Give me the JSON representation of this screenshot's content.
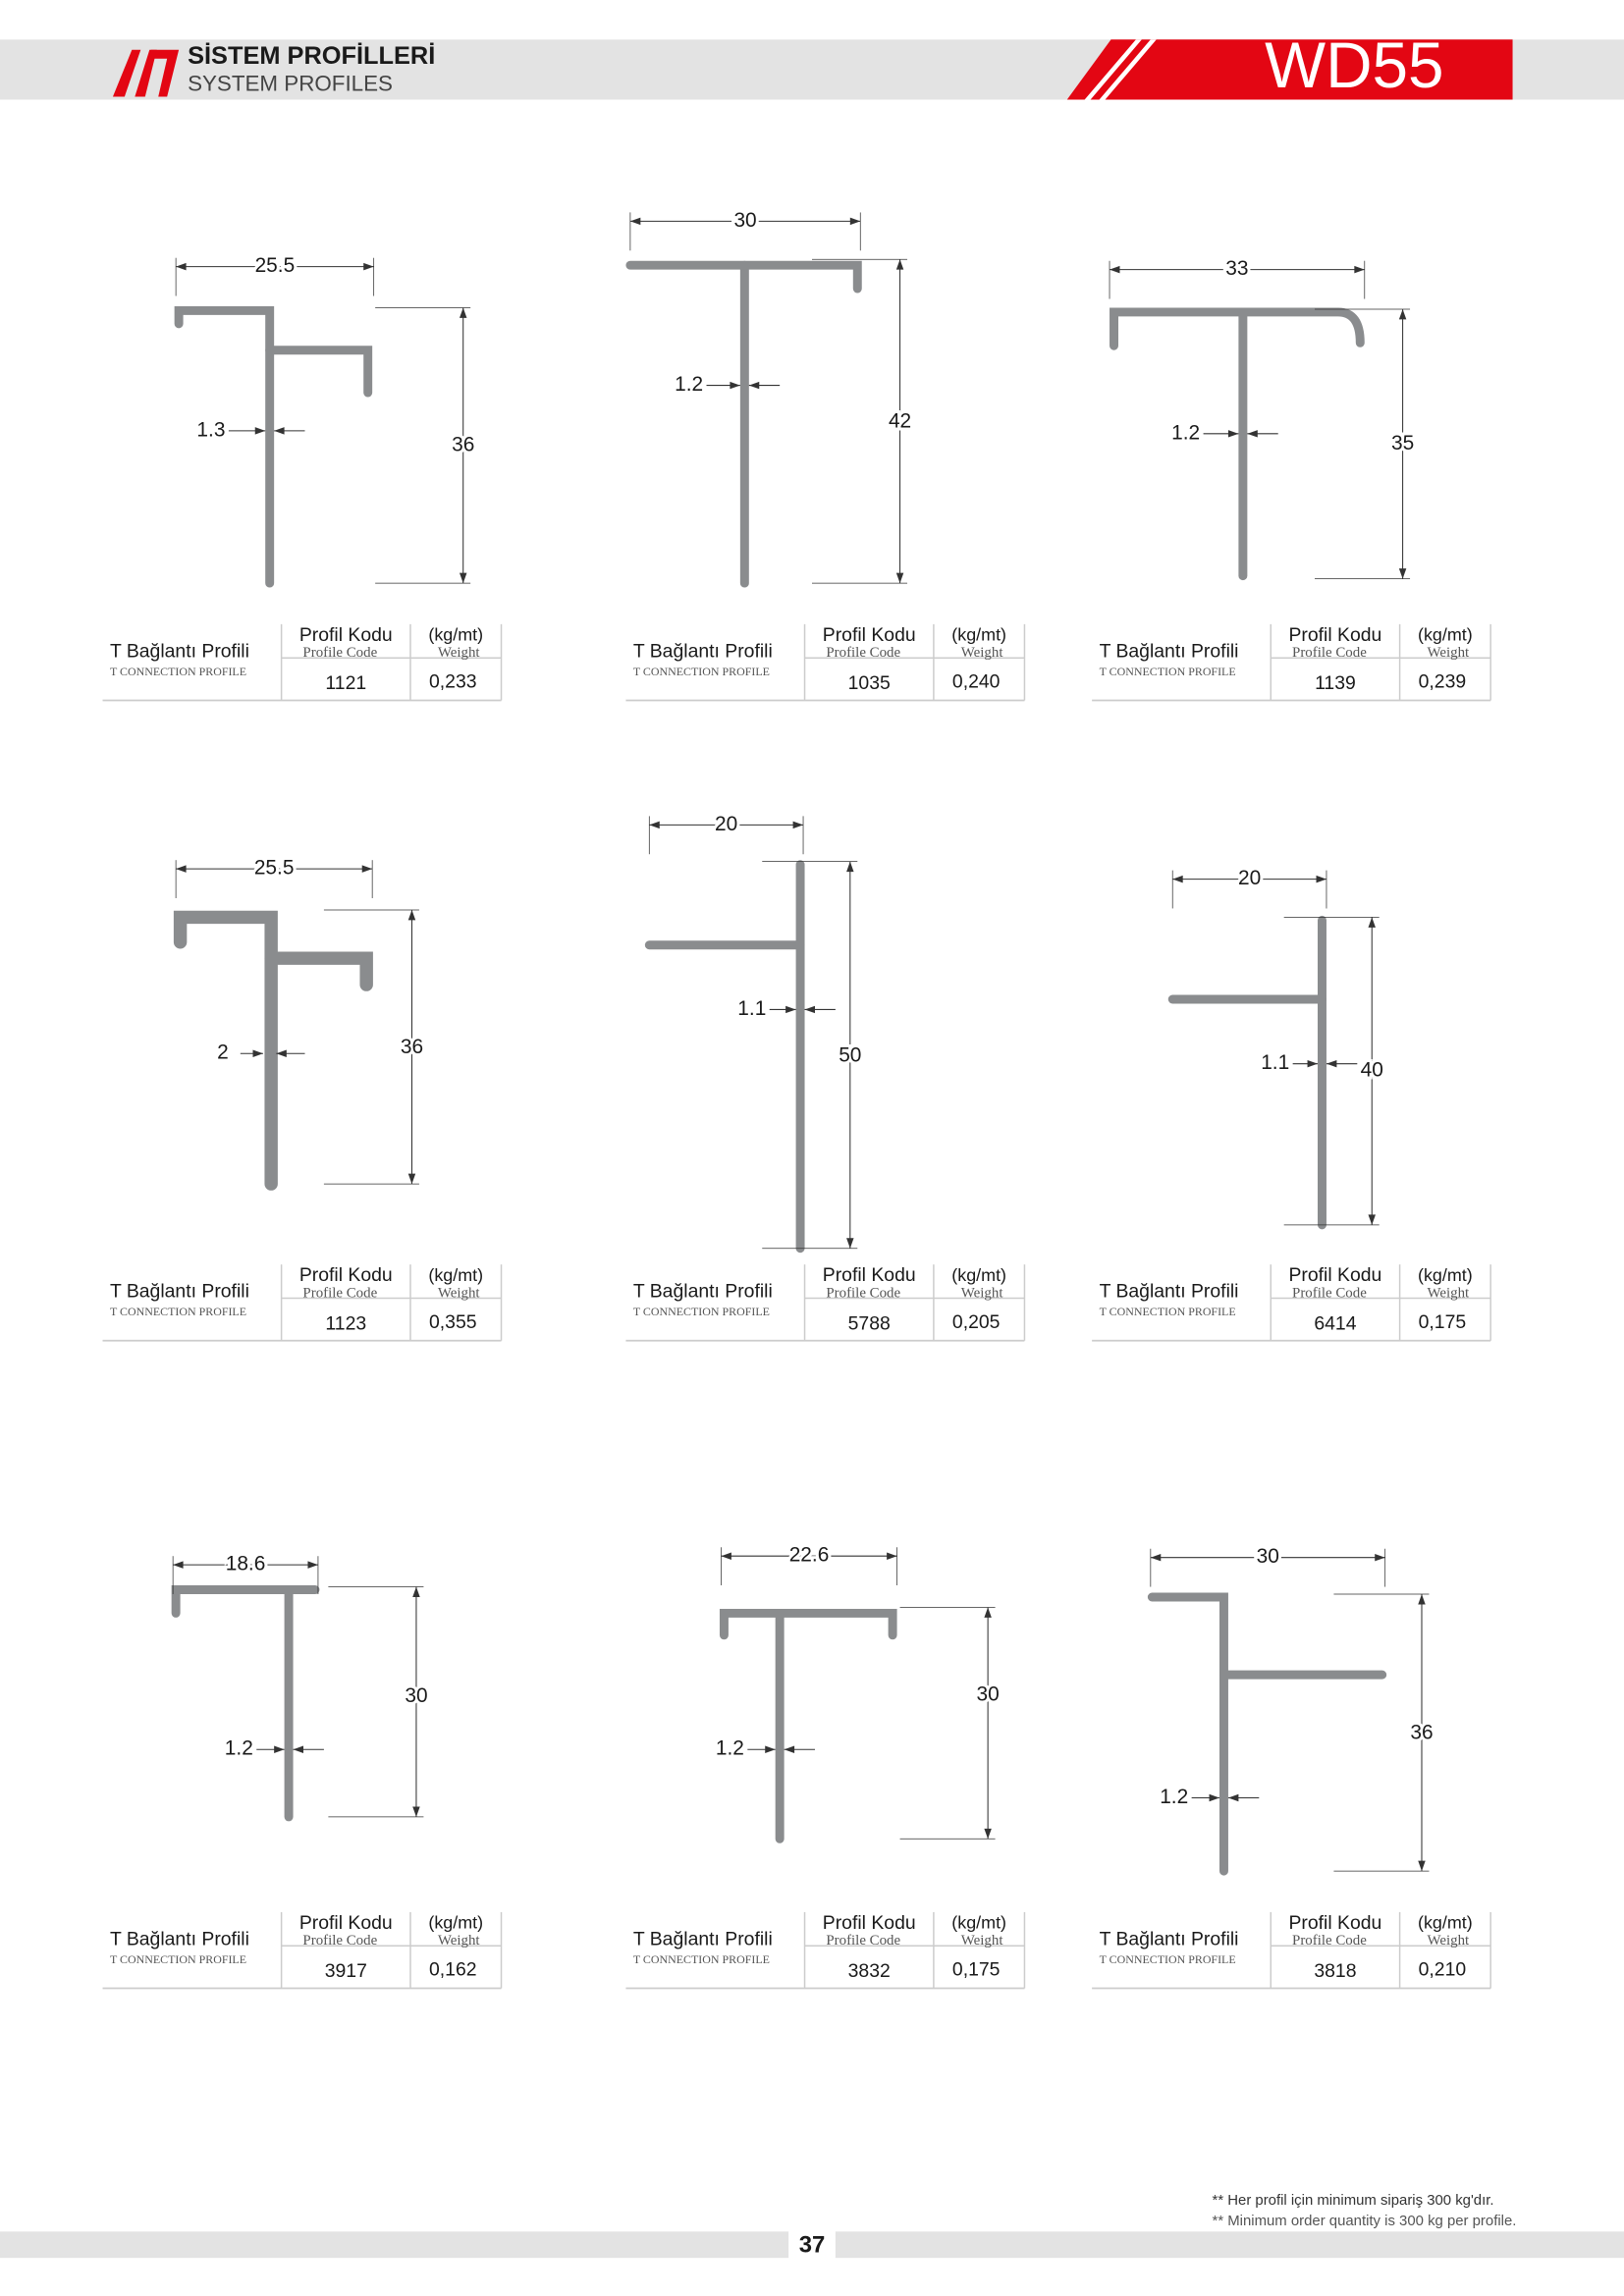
{
  "header": {
    "title_tr": "SİSTEM PROFİLLERİ",
    "title_en": "SYSTEM PROFILES",
    "series": "WD55"
  },
  "profiles": [
    {
      "width": "25.5",
      "height": "36",
      "thickness": "1.3",
      "name": "T Bağlantı Profili",
      "name_en": "T CONNECTION PROFILE",
      "code_label": "Profil Kodu",
      "code_label_en": "Profile Code",
      "weight_label": "(kg/mt)",
      "weight_label_en": "Weight",
      "code": "1121",
      "weight": "0,233"
    },
    {
      "width": "30",
      "height": "42",
      "thickness": "1.2",
      "name": "T Bağlantı Profili",
      "name_en": "T CONNECTION PROFILE",
      "code_label": "Profil Kodu",
      "code_label_en": "Profile Code",
      "weight_label": "(kg/mt)",
      "weight_label_en": "Weight",
      "code": "1035",
      "weight": "0,240"
    },
    {
      "width": "33",
      "height": "35",
      "thickness": "1.2",
      "name": "T Bağlantı Profili",
      "name_en": "T CONNECTION PROFILE",
      "code_label": "Profil Kodu",
      "code_label_en": "Profile Code",
      "weight_label": "(kg/mt)",
      "weight_label_en": "Weight",
      "code": "1139",
      "weight": "0,239"
    },
    {
      "width": "25.5",
      "height": "36",
      "thickness": "2",
      "name": "T Bağlantı Profili",
      "name_en": "T CONNECTION PROFILE",
      "code_label": "Profil Kodu",
      "code_label_en": "Profile Code",
      "weight_label": "(kg/mt)",
      "weight_label_en": "Weight",
      "code": "1123",
      "weight": "0,355"
    },
    {
      "width": "20",
      "height": "50",
      "thickness": "1.1",
      "name": "T Bağlantı Profili",
      "name_en": "T CONNECTION PROFILE",
      "code_label": "Profil Kodu",
      "code_label_en": "Profile Code",
      "weight_label": "(kg/mt)",
      "weight_label_en": "Weight",
      "code": "5788",
      "weight": "0,205"
    },
    {
      "width": "20",
      "height": "40",
      "thickness": "1.1",
      "name": "T Bağlantı Profili",
      "name_en": "T CONNECTION PROFILE",
      "code_label": "Profil Kodu",
      "code_label_en": "Profile Code",
      "weight_label": "(kg/mt)",
      "weight_label_en": "Weight",
      "code": "6414",
      "weight": "0,175"
    },
    {
      "width": "18.6",
      "height": "30",
      "thickness": "1.2",
      "name": "T Bağlantı Profili",
      "name_en": "T CONNECTION PROFILE",
      "code_label": "Profil Kodu",
      "code_label_en": "Profile Code",
      "weight_label": "(kg/mt)",
      "weight_label_en": "Weight",
      "code": "3917",
      "weight": "0,162"
    },
    {
      "width": "22.6",
      "height": "30",
      "thickness": "1.2",
      "name": "T Bağlantı Profili",
      "name_en": "T CONNECTION PROFILE",
      "code_label": "Profil Kodu",
      "code_label_en": "Profile Code",
      "weight_label": "(kg/mt)",
      "weight_label_en": "Weight",
      "code": "3832",
      "weight": "0,175"
    },
    {
      "width": "30",
      "height": "36",
      "thickness": "1.2",
      "name": "T Bağlantı Profili",
      "name_en": "T CONNECTION PROFILE",
      "code_label": "Profil Kodu",
      "code_label_en": "Profile Code",
      "weight_label": "(kg/mt)",
      "weight_label_en": "Weight",
      "code": "3818",
      "weight": "0,210"
    }
  ],
  "footer": {
    "note_tr": "** Her profil için minimum sipariş 300 kg'dır.",
    "note_en": "** Minimum order quantity is 300 kg per profile.",
    "page": "37"
  }
}
